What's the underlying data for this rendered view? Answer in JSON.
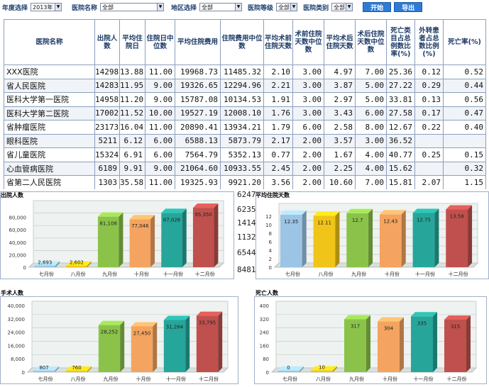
{
  "filters": {
    "year_label": "年度选择",
    "year_value": "2013年",
    "hospital_label": "医院名称",
    "hospital_value": "全部",
    "region_label": "地区选择",
    "region_value": "全部",
    "level_label": "医院等级",
    "level_value": "全部",
    "type_label": "医院类别",
    "type_value": "全部",
    "start_button": "开始",
    "export_button": "导出"
  },
  "table": {
    "headers": [
      "医院名称",
      "出院人数",
      "平均住院日",
      "住院日中位数",
      "平均住院费用",
      "住院费用中位数",
      "平均术前住院天数",
      "术前住院天数中位数",
      "平均术后住院天数",
      "术后住院天数中位数",
      "死亡类目占总例数比率(%)",
      "外转患者占总数比例(%)",
      "死亡率(%)"
    ],
    "rows": [
      [
        "XXX医院",
        "14298",
        "13.88",
        "11.00",
        "19968.73",
        "11485.32",
        "2.10",
        "3.00",
        "4.97",
        "7.00",
        "25.36",
        "0.12",
        "0.52"
      ],
      [
        "省人民医院",
        "14283",
        "11.95",
        "9.00",
        "19326.65",
        "12294.96",
        "2.21",
        "3.00",
        "3.87",
        "5.00",
        "27.22",
        "0.29",
        "0.44"
      ],
      [
        "医科大学第一医院",
        "14958",
        "11.20",
        "9.00",
        "15787.08",
        "10134.53",
        "1.91",
        "3.00",
        "2.97",
        "5.00",
        "33.81",
        "0.13",
        "0.56"
      ],
      [
        "医科大学第二医院",
        "17002",
        "11.52",
        "10.00",
        "19527.19",
        "12008.10",
        "1.76",
        "3.00",
        "3.43",
        "6.00",
        "27.58",
        "0.17",
        "0.47"
      ],
      [
        "省肿瘤医院",
        "23173",
        "16.04",
        "11.00",
        "20890.41",
        "13934.21",
        "1.79",
        "6.00",
        "2.58",
        "8.00",
        "12.67",
        "0.22",
        "0.40"
      ],
      [
        "眼科医院",
        "5211",
        "6.12",
        "6.00",
        "6588.13",
        "5873.79",
        "2.17",
        "2.00",
        "3.57",
        "3.00",
        "36.52",
        "",
        ""
      ],
      [
        "省儿童医院",
        "15324",
        "6.91",
        "6.00",
        "7564.79",
        "5352.13",
        "0.77",
        "2.00",
        "1.67",
        "4.00",
        "40.77",
        "0.25",
        "0.15"
      ],
      [
        "心血管病医院",
        "6189",
        "9.91",
        "9.00",
        "21064.60",
        "10933.55",
        "2.45",
        "2.00",
        "2.25",
        "4.00",
        "15.62",
        "",
        "0.32"
      ],
      [
        "省第二人民医院",
        "1303",
        "35.58",
        "11.00",
        "19325.93",
        "9921.20",
        "3.56",
        "2.00",
        "10.60",
        "7.00",
        "15.81",
        "2.07",
        "1.15"
      ]
    ],
    "partial_values": [
      "6247",
      "6235",
      "1414",
      "1132",
      "6544",
      "8481"
    ]
  },
  "charts": [
    {
      "title": "出院人数",
      "chart_data": {
        "type": "bar",
        "categories": [
          "七月份",
          "八月份",
          "九月份",
          "十月份",
          "十一月份",
          "十二月份"
        ],
        "values": [
          2693,
          2602,
          81108,
          77046,
          87026,
          95350
        ],
        "labels": [
          "2,693",
          "2,602",
          "81,108",
          "77,046",
          "87,026",
          "95,350"
        ],
        "ylim": [
          0,
          100000
        ],
        "yticks": [
          "0",
          "20,000",
          "40,000",
          "60,000",
          "80,000"
        ],
        "colors": [
          "#9cc4e4",
          "#f0c419",
          "#8bc34a",
          "#f4a460",
          "#26a69a",
          "#c0504d"
        ]
      }
    },
    {
      "title": "平均住院天数",
      "chart_data": {
        "type": "bar",
        "categories": [
          "七月份",
          "八月份",
          "九月份",
          "十月份",
          "十一月份",
          "十二月份"
        ],
        "values": [
          12.35,
          12.11,
          12.7,
          12.43,
          12.75,
          13.58
        ],
        "labels": [
          "12.35",
          "12.11",
          "12.7",
          "12.43",
          "12.75",
          "13.58"
        ],
        "ylim": [
          0,
          14
        ],
        "yticks": [
          "0",
          "2",
          "4",
          "6",
          "8",
          "10",
          "12"
        ],
        "colors": [
          "#9cc4e4",
          "#f0c419",
          "#8bc34a",
          "#f4a460",
          "#26a69a",
          "#c0504d"
        ]
      }
    },
    {
      "title": "手术人数",
      "chart_data": {
        "type": "bar",
        "categories": [
          "七月份",
          "八月份",
          "九月份",
          "十月份",
          "十一月份",
          "十二月份"
        ],
        "values": [
          807,
          760,
          28252,
          27450,
          31264,
          33795
        ],
        "labels": [
          "807",
          "760",
          "28,252",
          "27,450",
          "31,264",
          "33,795"
        ],
        "ylim": [
          0,
          40000
        ],
        "yticks": [
          "0",
          "8,000",
          "16,000",
          "24,000",
          "32,000",
          "40,000"
        ],
        "colors": [
          "#9cc4e4",
          "#f0c419",
          "#8bc34a",
          "#f4a460",
          "#26a69a",
          "#c0504d"
        ]
      }
    },
    {
      "title": "死亡人数",
      "chart_data": {
        "type": "bar",
        "categories": [
          "七月份",
          "八月份",
          "九月份",
          "十月份",
          "十一月份",
          "十二月份"
        ],
        "values": [
          0,
          10,
          317,
          304,
          335,
          315
        ],
        "labels": [
          "0",
          "10",
          "317",
          "304",
          "335",
          "315"
        ],
        "ylim": [
          0,
          400
        ],
        "yticks": [
          "0",
          "80",
          "160",
          "240",
          "320",
          "400"
        ],
        "colors": [
          "#9cc4e4",
          "#f0c419",
          "#8bc34a",
          "#f4a460",
          "#26a69a",
          "#c0504d"
        ]
      }
    }
  ]
}
